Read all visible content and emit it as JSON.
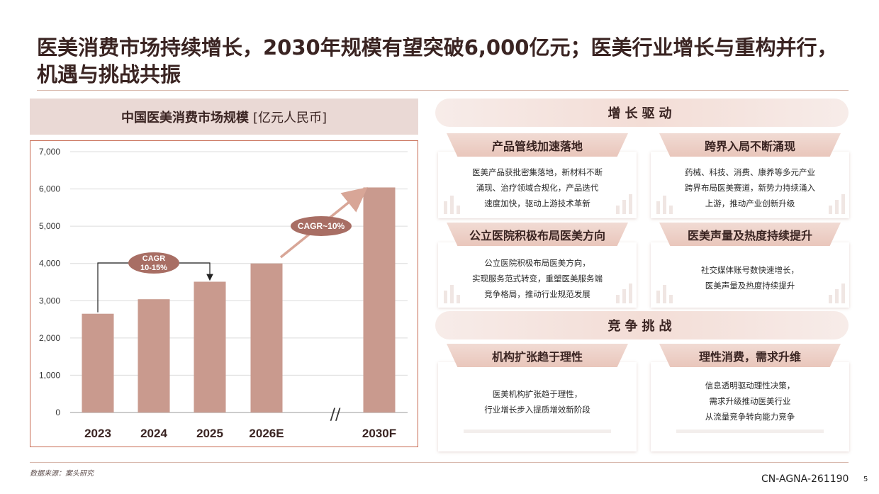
{
  "page": {
    "title": "医美消费市场持续增长，2030年规模有望突破6,000亿元；医美行业增长与重构并行，机遇与挑战共振",
    "source": "数据来源：案头研究",
    "doc_code": "CN-AGNA-261190",
    "page_number": "5"
  },
  "chart_header": {
    "title": "中国医美消费市场规模",
    "unit": "[亿元人民币]"
  },
  "chart_data": {
    "type": "bar",
    "categories": [
      "2023",
      "2024",
      "2025",
      "2026E",
      "2030F"
    ],
    "values": [
      2650,
      3040,
      3510,
      4000,
      6040
    ],
    "ylim": [
      0,
      7000
    ],
    "yticks": [
      0,
      1000,
      2000,
      3000,
      4000,
      5000,
      6000,
      7000
    ],
    "ytick_labels": [
      "0",
      "1,000",
      "2,000",
      "3,000",
      "4,000",
      "5,000",
      "6,000",
      "7,000"
    ],
    "grid": true,
    "axis_break_label": "//",
    "bar_color": "#c99a8e",
    "annotations": [
      {
        "label_line1": "CAGR",
        "label_line2": "10-15%",
        "from": "2023",
        "to": "2025",
        "type": "bracket"
      },
      {
        "label_line1": "CAGR~10%",
        "from": "2026E",
        "to": "2030F",
        "type": "arrow"
      }
    ]
  },
  "growth": {
    "title": "增长驱动",
    "cards": [
      {
        "title": "产品管线加速落地",
        "lines": [
          "医美产品获批密集落地，新材料不断",
          "涌现、治疗领域合规化，产品迭代",
          "速度加快，驱动上游技术革新"
        ]
      },
      {
        "title": "跨界入局不断涌现",
        "lines": [
          "药械、科技、消费、康养等多元产业",
          "跨界布局医美赛道，新势力持续涌入",
          "上游，推动产业创新升级"
        ]
      },
      {
        "title": "公立医院积极布局医美方向",
        "lines": [
          "公立医院积极布局医美方向，",
          "实现服务范式转变，重塑医美服务端",
          "竞争格局，推动行业规范发展"
        ]
      },
      {
        "title": "医美声量及热度持续提升",
        "lines": [
          "社交媒体账号数快速增长，",
          "医美声量及热度持续提升"
        ]
      }
    ]
  },
  "challenge": {
    "title": "竞争挑战",
    "cards": [
      {
        "title": "机构扩张趋于理性",
        "lines": [
          "医美机构扩张趋于理性，",
          "行业增长步入提质增效新阶段"
        ]
      },
      {
        "title": "理性消费，需求升维",
        "lines": [
          "信息透明驱动理性决策，",
          "需求升级推动医美行业",
          "从流量竞争转向能力竞争"
        ]
      }
    ]
  },
  "colors": {
    "accent": "#c76a52",
    "bar": "#c99a8e",
    "label_badge": "#a86e64",
    "arrow": "#d8a697"
  }
}
